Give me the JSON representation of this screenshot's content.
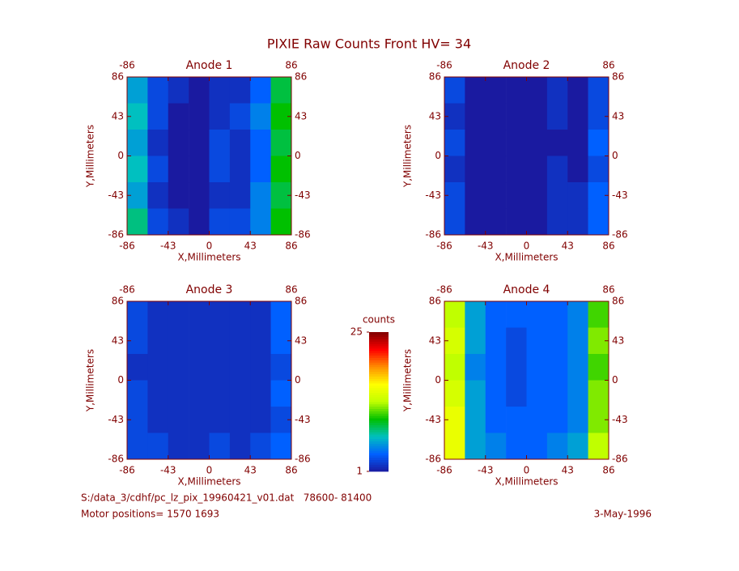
{
  "title": "PIXIE Raw Counts Front HV= 34",
  "chart_data": [
    {
      "type": "heatmap",
      "title": "Anode 1",
      "xlabel": "X,Millimeters",
      "ylabel": "Y,Millimeters",
      "xlim": [
        -86,
        86
      ],
      "ylim": [
        -86,
        86
      ],
      "xticks": [
        -86,
        -43,
        0,
        43,
        86
      ],
      "yticks": [
        -86,
        -43,
        0,
        43,
        86
      ],
      "z": [
        [
          6,
          3,
          2,
          1,
          2,
          2,
          4,
          9
        ],
        [
          7,
          3,
          1,
          1,
          2,
          3,
          5,
          10
        ],
        [
          6,
          2,
          1,
          1,
          3,
          2,
          4,
          9
        ],
        [
          7,
          3,
          1,
          1,
          3,
          2,
          4,
          10
        ],
        [
          6,
          2,
          1,
          1,
          2,
          2,
          5,
          9
        ],
        [
          8,
          3,
          2,
          1,
          3,
          3,
          5,
          10
        ]
      ]
    },
    {
      "type": "heatmap",
      "title": "Anode 2",
      "xlabel": "X,Millimeters",
      "ylabel": "Y,Millimeters",
      "xlim": [
        -86,
        86
      ],
      "ylim": [
        -86,
        86
      ],
      "xticks": [
        -86,
        -43,
        0,
        43,
        86
      ],
      "yticks": [
        -86,
        -43,
        0,
        43,
        86
      ],
      "z": [
        [
          3,
          1,
          1,
          1,
          1,
          2,
          1,
          3
        ],
        [
          2,
          1,
          1,
          1,
          1,
          2,
          1,
          3
        ],
        [
          3,
          1,
          1,
          1,
          1,
          1,
          1,
          4
        ],
        [
          2,
          1,
          1,
          1,
          1,
          2,
          1,
          3
        ],
        [
          3,
          1,
          1,
          1,
          1,
          2,
          2,
          4
        ],
        [
          3,
          1,
          1,
          1,
          1,
          2,
          2,
          4
        ]
      ]
    },
    {
      "type": "heatmap",
      "title": "Anode 3",
      "xlabel": "X,Millimeters",
      "ylabel": "Y,Millimeters",
      "xlim": [
        -86,
        86
      ],
      "ylim": [
        -86,
        86
      ],
      "xticks": [
        -86,
        -43,
        0,
        43,
        86
      ],
      "yticks": [
        -86,
        -43,
        0,
        43,
        86
      ],
      "z": [
        [
          3,
          2,
          2,
          2,
          2,
          2,
          2,
          4
        ],
        [
          3,
          2,
          2,
          2,
          2,
          2,
          2,
          4
        ],
        [
          2,
          2,
          2,
          2,
          2,
          2,
          2,
          3
        ],
        [
          3,
          2,
          2,
          2,
          2,
          2,
          2,
          4
        ],
        [
          3,
          2,
          2,
          2,
          2,
          2,
          2,
          3
        ],
        [
          3,
          3,
          2,
          2,
          3,
          2,
          3,
          4
        ]
      ]
    },
    {
      "type": "heatmap",
      "title": "Anode 4",
      "xlabel": "X,Millimeters",
      "ylabel": "Y,Millimeters",
      "xlim": [
        -86,
        86
      ],
      "ylim": [
        -86,
        86
      ],
      "xticks": [
        -86,
        -43,
        0,
        43,
        86
      ],
      "yticks": [
        -86,
        -43,
        0,
        43,
        86
      ],
      "z": [
        [
          13,
          6,
          4,
          4,
          4,
          4,
          5,
          11
        ],
        [
          14,
          6,
          4,
          3,
          4,
          4,
          5,
          12
        ],
        [
          13,
          5,
          4,
          3,
          4,
          4,
          5,
          11
        ],
        [
          14,
          6,
          4,
          3,
          4,
          4,
          5,
          12
        ],
        [
          15,
          6,
          4,
          4,
          4,
          4,
          5,
          12
        ],
        [
          15,
          6,
          5,
          4,
          4,
          5,
          6,
          13
        ]
      ]
    }
  ],
  "colorbar": {
    "label": "counts",
    "lim": [
      1,
      25
    ],
    "ticks": [
      1,
      25
    ],
    "colors": [
      "#1a1aa0",
      "#0060ff",
      "#00c0c0",
      "#00c000",
      "#c0ff00",
      "#ffff00",
      "#ff9000",
      "#ff0000",
      "#800000"
    ]
  },
  "footer": {
    "file": "S:/data_3/cdhf/pc_lz_pix_19960421_v01.dat   78600- 81400",
    "motor": "Motor positions= 1570 1693",
    "date": "3-May-1996"
  }
}
